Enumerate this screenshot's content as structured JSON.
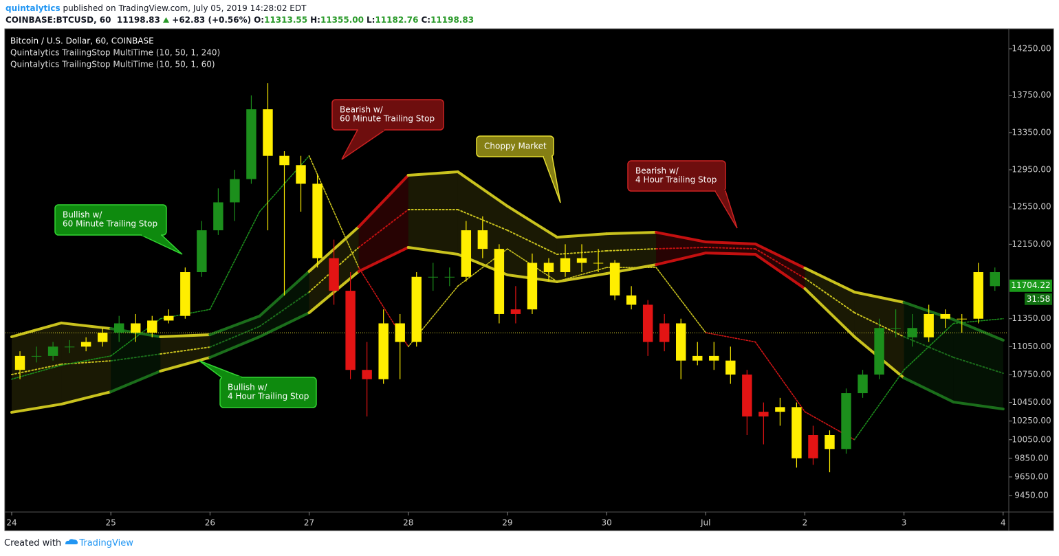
{
  "header": {
    "user": "quintalytics",
    "published": "published on TradingView.com, July 05, 2019 14:28:02 EDT",
    "symbol": "COINBASE:BTCUSD, 60",
    "last": "11198.83",
    "change": "+62.83 (+0.56%)",
    "ohlc": [
      [
        "O:",
        "11313.55"
      ],
      [
        "H:",
        "11355.00"
      ],
      [
        "L:",
        "11182.76"
      ],
      [
        "C:",
        "11198.83"
      ]
    ]
  },
  "footer": {
    "created": "Created with",
    "brand": "TradingView"
  },
  "chart_data": {
    "type": "candlestick",
    "legend": [
      "Bitcoin / U.S. Dollar, 60, COINBASE",
      "Quintalytics TrailingStop MultiTime (10, 50, 1, 240)",
      "Quintalytics TrailingStop MultiTime (10, 50, 1, 60)"
    ],
    "x": [
      2,
      6,
      10,
      14,
      18,
      22,
      26,
      30,
      34,
      38,
      42,
      46,
      50,
      54,
      58,
      62,
      66,
      70,
      74,
      78,
      82,
      86,
      90,
      94,
      98,
      102,
      106,
      110,
      114,
      118,
      122,
      126,
      130,
      134,
      138,
      142,
      146,
      150,
      154,
      158,
      162,
      166,
      170,
      174,
      178,
      182,
      186,
      190,
      194,
      198,
      202,
      206,
      210,
      214,
      218,
      222,
      226,
      230,
      234,
      238
    ],
    "open": [
      10800,
      10950,
      10950,
      11050,
      11050,
      11100,
      11200,
      11300,
      11200,
      11330,
      11380,
      11850,
      12300,
      12600,
      12850,
      13600,
      13100,
      13000,
      12800,
      12000,
      11650,
      10800,
      10700,
      11300,
      11100,
      11800,
      11800,
      11800,
      12300,
      12100,
      11400,
      11450,
      11950,
      11850,
      12000,
      11950,
      11950,
      11600,
      11500,
      11100,
      11300,
      10900,
      10950,
      10900,
      10750,
      10300,
      10350,
      10400,
      9850,
      10100,
      9950,
      10550,
      10750,
      11250,
      11250,
      11150,
      11400,
      11350,
      11350,
      11850
    ],
    "high": [
      11000,
      11050,
      11100,
      11120,
      11150,
      11250,
      11380,
      11400,
      11380,
      11450,
      11900,
      12400,
      12750,
      12950,
      13750,
      13880,
      13150,
      13100,
      12900,
      12200,
      11850,
      11100,
      11450,
      11400,
      11850,
      11950,
      11900,
      12400,
      12450,
      12150,
      11700,
      12050,
      12000,
      12150,
      12150,
      12100,
      11980,
      11700,
      11550,
      11400,
      11350,
      11100,
      11100,
      11050,
      10800,
      10450,
      10500,
      10450,
      10200,
      10150,
      10600,
      10800,
      11350,
      11450,
      11400,
      11500,
      11450,
      11400,
      11950,
      11900
    ],
    "low": [
      10700,
      10880,
      10900,
      10980,
      11000,
      11050,
      11100,
      11100,
      11150,
      11300,
      11350,
      11800,
      12250,
      12400,
      12800,
      12300,
      11600,
      12500,
      11900,
      11500,
      10700,
      10300,
      10650,
      10700,
      11050,
      11650,
      11700,
      11750,
      12000,
      11300,
      11300,
      11400,
      11750,
      11800,
      11850,
      11850,
      11550,
      11450,
      10950,
      11000,
      10700,
      10850,
      10800,
      10650,
      10100,
      10000,
      10200,
      9750,
      9780,
      9700,
      9900,
      10500,
      10700,
      11150,
      11050,
      11100,
      11250,
      11200,
      11300,
      11650
    ],
    "close": [
      10950,
      10950,
      11050,
      11050,
      11100,
      11200,
      11300,
      11200,
      11330,
      11380,
      11850,
      12300,
      12600,
      12850,
      13600,
      13100,
      13000,
      12800,
      12000,
      11650,
      10800,
      10700,
      11300,
      11100,
      11800,
      11800,
      11800,
      12300,
      12100,
      11400,
      11450,
      11950,
      11850,
      12000,
      11950,
      11950,
      11600,
      11500,
      11100,
      11300,
      10900,
      10950,
      10900,
      10750,
      10300,
      10350,
      10400,
      9850,
      10100,
      9950,
      10550,
      10750,
      11250,
      11250,
      11150,
      11400,
      11350,
      11350,
      11850,
      11700
    ],
    "candle_colors": [
      "#ffee00",
      "#1c8f1c",
      "#1c8f1c",
      "#1c8f1c",
      "#ffee00",
      "#ffee00",
      "#1c8f1c",
      "#ffee00",
      "#ffee00",
      "#ffee00",
      "#ffee00",
      "#1c8f1c",
      "#1c8f1c",
      "#1c8f1c",
      "#1c8f1c",
      "#ffee00",
      "#ffee00",
      "#ffee00",
      "#ffee00",
      "#e31414",
      "#e31414",
      "#e31414",
      "#ffee00",
      "#ffee00",
      "#ffee00",
      "#1c8f1c",
      "#1c8f1c",
      "#ffee00",
      "#ffee00",
      "#ffee00",
      "#e31414",
      "#ffee00",
      "#ffee00",
      "#ffee00",
      "#ffee00",
      "#ffee00",
      "#ffee00",
      "#ffee00",
      "#e31414",
      "#e31414",
      "#ffee00",
      "#ffee00",
      "#ffee00",
      "#ffee00",
      "#e31414",
      "#e31414",
      "#ffee00",
      "#ffee00",
      "#e31414",
      "#ffee00",
      "#1c8f1c",
      "#1c8f1c",
      "#1c8f1c",
      "#1c8f1c",
      "#1c8f1c",
      "#ffee00",
      "#ffee00",
      "#ffee00",
      "#ffee00",
      "#1c8f1c"
    ],
    "band_x": [
      0,
      12,
      24,
      36,
      48,
      60,
      72,
      84,
      96,
      108,
      120,
      132,
      144,
      156,
      168,
      180,
      192,
      204,
      216,
      228,
      240
    ],
    "band_upper": [
      11156,
      11304,
      11244,
      11156,
      11178,
      11378,
      11858,
      12337,
      12891,
      12928,
      12559,
      12226,
      12263,
      12278,
      12175,
      12153,
      11894,
      11636,
      11525,
      11340,
      11119
    ],
    "band_mid": [
      10750,
      10861,
      10897,
      10971,
      11045,
      11267,
      11636,
      12116,
      12522,
      12522,
      12300,
      12042,
      12079,
      12101,
      12116,
      12101,
      11784,
      11415,
      11156,
      10934,
      10764
    ],
    "band_lower": [
      10344,
      10432,
      10565,
      10787,
      10934,
      11156,
      11414,
      11858,
      12116,
      12042,
      11821,
      11747,
      11835,
      11931,
      12056,
      12042,
      11673,
      11156,
      10713,
      10454,
      10380
    ],
    "band_colors": [
      "#c9c21e",
      "#c9c21e",
      "#1b6e1b",
      "#c9c21e",
      "#1b6e1b",
      "#1b6e1b",
      "#c9c21e",
      "#c41010",
      "#c9c21e",
      "#c9c21e",
      "#c9c21e",
      "#c9c21e",
      "#c9c21e",
      "#c41010",
      "#c41010",
      "#c41010",
      "#c9c21e",
      "#c9c21e",
      "#1b6e1b",
      "#1b6e1b"
    ],
    "stop_x": [
      0,
      12,
      24,
      36,
      48,
      60,
      72,
      84,
      96,
      108,
      120,
      132,
      144,
      156,
      168,
      180,
      192,
      204,
      216,
      228,
      240
    ],
    "stop_60": [
      10700,
      10850,
      10950,
      11350,
      11450,
      12500,
      13100,
      11900,
      11050,
      11700,
      12100,
      11750,
      11900,
      11900,
      11200,
      11100,
      10350,
      10050,
      10800,
      11300,
      11350
    ],
    "stop_colors": [
      "#1c8f1c",
      "#1c8f1c",
      "#1c8f1c",
      "#1c8f1c",
      "#1c8f1c",
      "#1c8f1c",
      "#c9c21e",
      "#d01515",
      "#c9c21e",
      "#c9c21e",
      "#c9c21e",
      "#c9c21e",
      "#c9c21e",
      "#c9c21e",
      "#d01515",
      "#d01515",
      "#d01515",
      "#1c8f1c",
      "#1c8f1c",
      "#1c8f1c"
    ],
    "price_line": 11198.83,
    "last_price": 11704.22,
    "countdown": "31:58",
    "xlim": [
      -1.5,
      241.2
    ],
    "xticks": [
      {
        "value": 0,
        "label": "24"
      },
      {
        "value": 24,
        "label": "25"
      },
      {
        "value": 48,
        "label": "26"
      },
      {
        "value": 72,
        "label": "27"
      },
      {
        "value": 96,
        "label": "28"
      },
      {
        "value": 120,
        "label": "29"
      },
      {
        "value": 144,
        "label": "30"
      },
      {
        "value": 168,
        "label": "Jul"
      },
      {
        "value": 192,
        "label": "2"
      },
      {
        "value": 216,
        "label": "3"
      },
      {
        "value": 240,
        "label": "4"
      }
    ],
    "ylim": [
      9273,
      14464
    ],
    "yticks": [
      {
        "value": 14250,
        "label": "14250.00"
      },
      {
        "value": 13750,
        "label": "13750.00"
      },
      {
        "value": 13350,
        "label": "13350.00"
      },
      {
        "value": 12950,
        "label": "12950.00"
      },
      {
        "value": 12550,
        "label": "12550.00"
      },
      {
        "value": 12150,
        "label": "12150.00"
      },
      {
        "value": 11350,
        "label": "11350.00"
      },
      {
        "value": 11050,
        "label": "11050.00"
      },
      {
        "value": 10750,
        "label": "10750.00"
      },
      {
        "value": 10450,
        "label": "10450.00"
      },
      {
        "value": 10250,
        "label": "10250.00"
      },
      {
        "value": 10050,
        "label": "10050.00"
      },
      {
        "value": 9850,
        "label": "9850.00"
      },
      {
        "value": 9650,
        "label": "9650.00"
      },
      {
        "value": 9450,
        "label": "9450.00"
      }
    ],
    "annotations": [
      {
        "lines": [
          "Bullish w/",
          "60 Minute Trailing Stop"
        ],
        "fill": "#0e8a0e",
        "border": "#33d433"
      },
      {
        "lines": [
          "Bullish w/",
          "4 Hour Trailing Stop"
        ],
        "fill": "#0e8a0e",
        "border": "#33d433"
      },
      {
        "lines": [
          "Bearish w/",
          "60 Minute Trailing Stop"
        ],
        "fill": "#6e0e0e",
        "border": "#cc2222"
      },
      {
        "lines": [
          "Choppy Market"
        ],
        "fill": "#857f14",
        "border": "#e6de30"
      },
      {
        "lines": [
          "Bearish w/",
          "4 Hour Trailing Stop"
        ],
        "fill": "#6e0e0e",
        "border": "#cc2222"
      }
    ]
  }
}
